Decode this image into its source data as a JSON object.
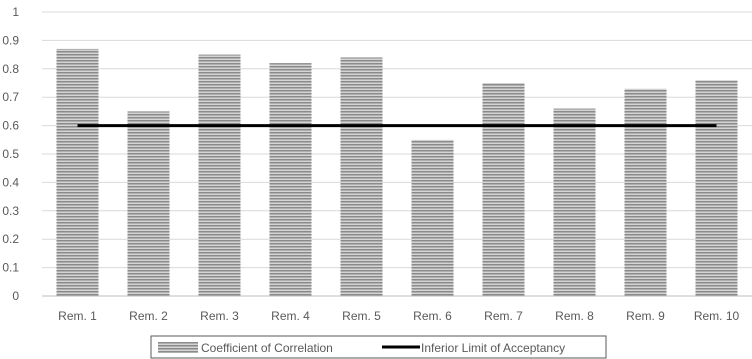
{
  "chart_data": {
    "type": "bar",
    "categories": [
      "Rem. 1",
      "Rem. 2",
      "Rem. 3",
      "Rem. 4",
      "Rem. 5",
      "Rem. 6",
      "Rem. 7",
      "Rem. 8",
      "Rem. 9",
      "Rem. 10"
    ],
    "series": [
      {
        "name": "Coefficient of Correlation",
        "type": "bar",
        "values": [
          0.87,
          0.65,
          0.85,
          0.82,
          0.84,
          0.55,
          0.75,
          0.66,
          0.73,
          0.76
        ]
      },
      {
        "name": "Inferior Limit of Acceptancy",
        "type": "line",
        "values": [
          0.6,
          0.6,
          0.6,
          0.6,
          0.6,
          0.6,
          0.6,
          0.6,
          0.6,
          0.6
        ]
      }
    ],
    "y_ticks": [
      "0",
      "0.1",
      "0.2",
      "0.3",
      "0.4",
      "0.5",
      "0.6",
      "0.7",
      "0.8",
      "0.9",
      "1"
    ],
    "ylim": [
      0,
      1
    ],
    "grid": true,
    "legend_position": "bottom",
    "colors": {
      "bar": "#8c8c8c",
      "bar_stripe": "#d9d9d9",
      "line": "#000000",
      "grid": "#d9d9d9",
      "axis": "#bfbfbf"
    }
  }
}
